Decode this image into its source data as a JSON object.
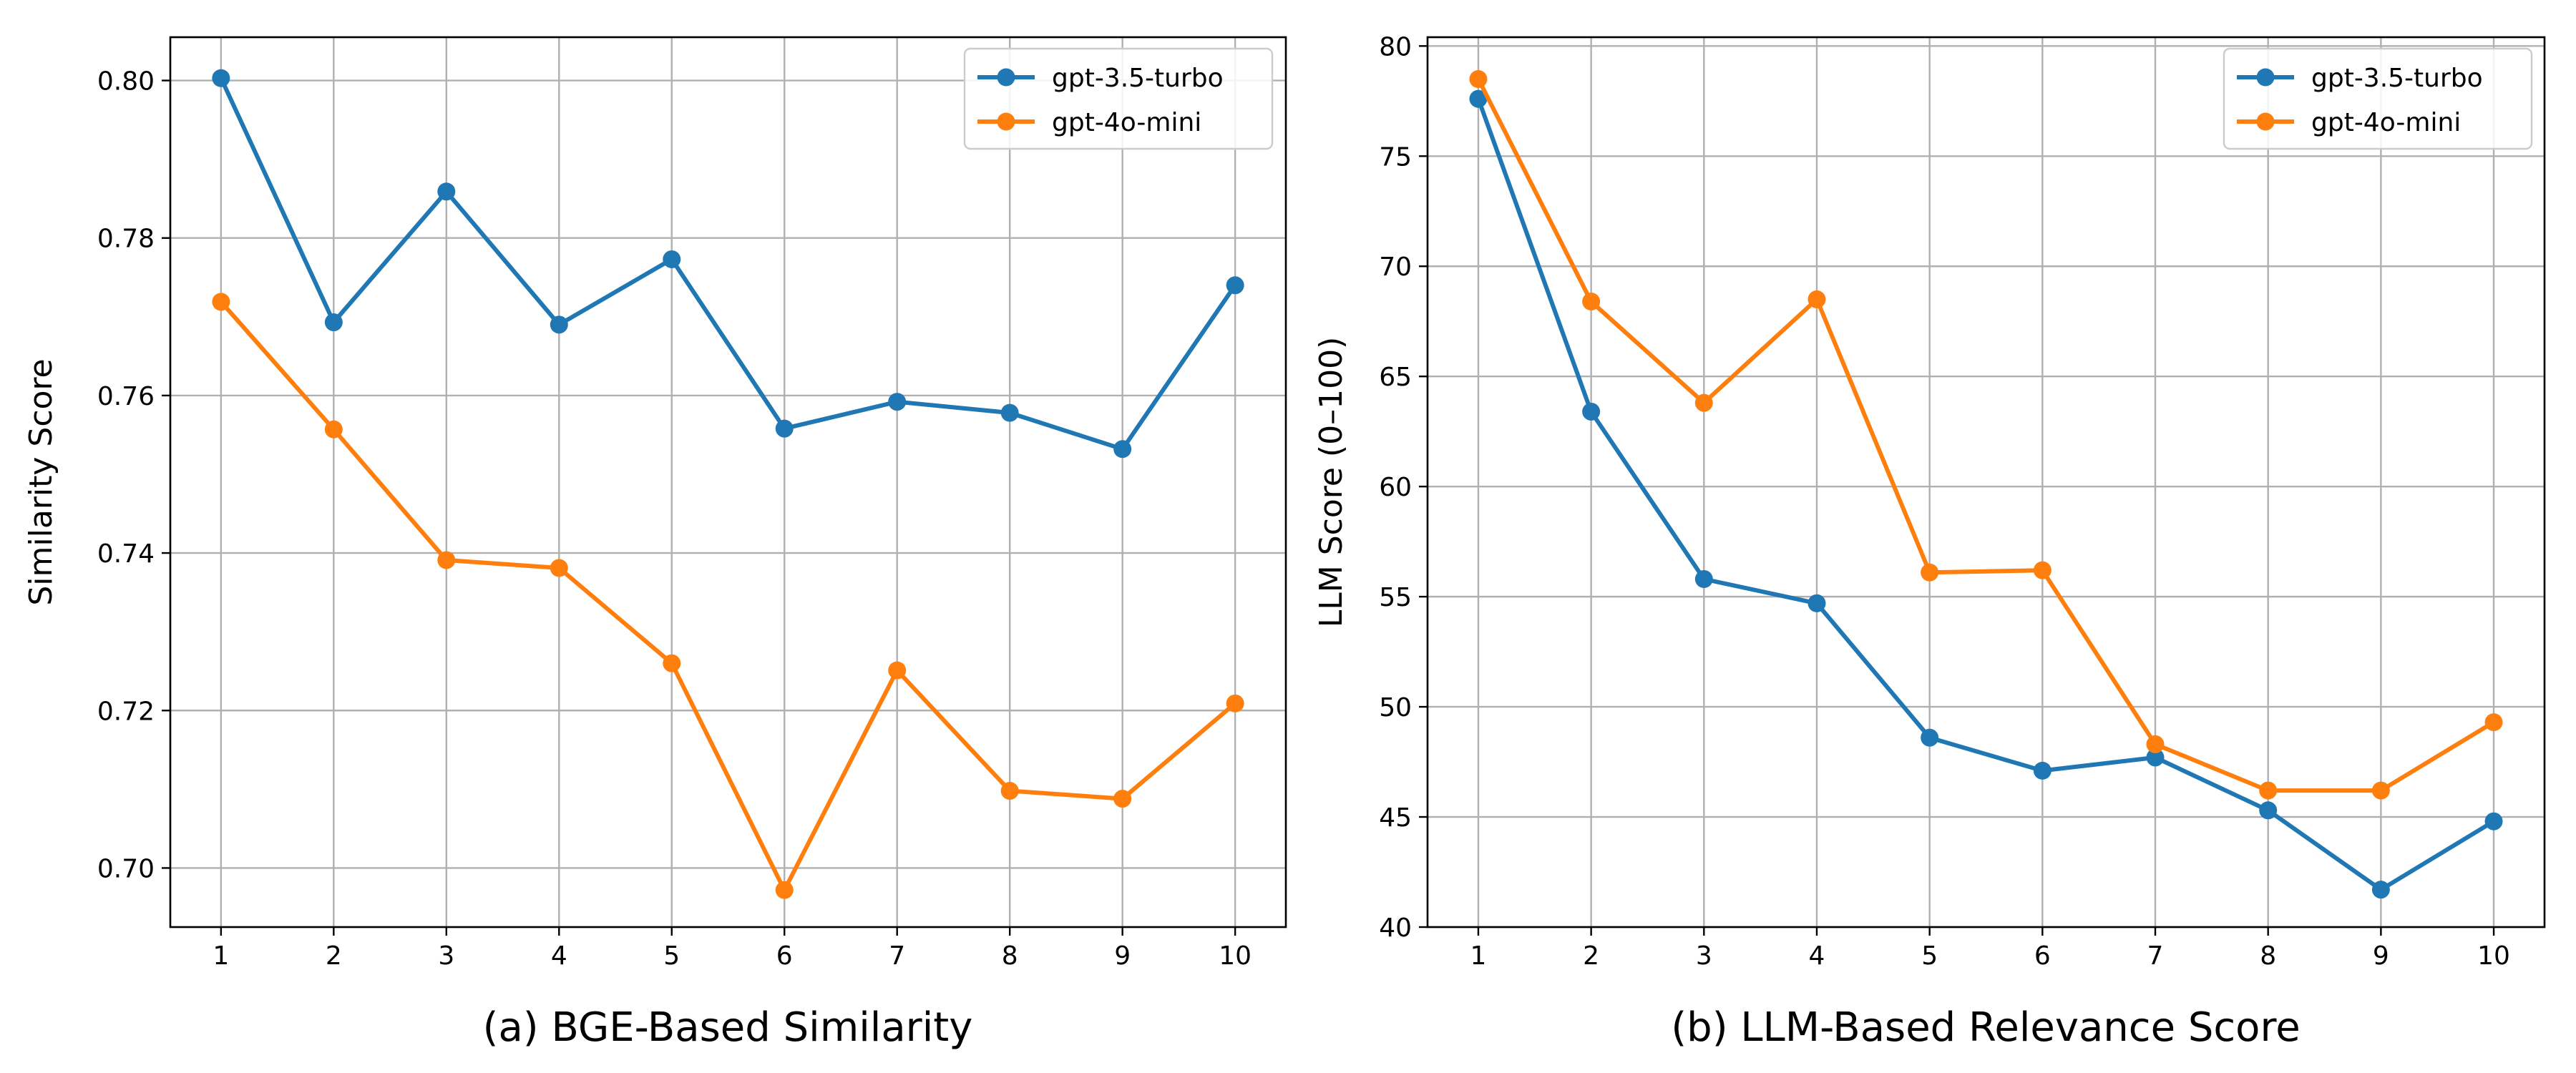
{
  "chart_data": [
    {
      "type": "line",
      "caption": "(a) BGE-Based Similarity",
      "xlabel": "",
      "ylabel": "Similarity Score",
      "x": [
        1,
        2,
        3,
        4,
        5,
        6,
        7,
        8,
        9,
        10
      ],
      "x_ticks": [
        "1",
        "2",
        "3",
        "4",
        "5",
        "6",
        "7",
        "8",
        "9",
        "10"
      ],
      "xlim": [
        0.55,
        10.45
      ],
      "ylim": [
        0.6925,
        0.8055
      ],
      "y_ticks": [
        0.7,
        0.72,
        0.74,
        0.76,
        0.78,
        0.8
      ],
      "y_tick_labels": [
        "0.70",
        "0.72",
        "0.74",
        "0.76",
        "0.78",
        "0.80"
      ],
      "grid": true,
      "legend_position": "top-right",
      "series": [
        {
          "name": "gpt-3.5-turbo",
          "color": "#1f77b4",
          "values": [
            0.8003,
            0.7693,
            0.7859,
            0.769,
            0.7773,
            0.7558,
            0.7592,
            0.7578,
            0.7532,
            0.774
          ]
        },
        {
          "name": "gpt-4o-mini",
          "color": "#ff7f0e",
          "values": [
            0.7719,
            0.7557,
            0.7391,
            0.7381,
            0.726,
            0.6972,
            0.7251,
            0.7098,
            0.7088,
            0.7209
          ]
        }
      ]
    },
    {
      "type": "line",
      "caption": "(b) LLM-Based Relevance Score",
      "xlabel": "",
      "ylabel": "LLM Score (0–100)",
      "x": [
        1,
        2,
        3,
        4,
        5,
        6,
        7,
        8,
        9,
        10
      ],
      "x_ticks": [
        "1",
        "2",
        "3",
        "4",
        "5",
        "6",
        "7",
        "8",
        "9",
        "10"
      ],
      "xlim": [
        0.55,
        10.45
      ],
      "ylim": [
        40.0,
        80.4
      ],
      "y_ticks": [
        40,
        45,
        50,
        55,
        60,
        65,
        70,
        75,
        80
      ],
      "y_tick_labels": [
        "40",
        "45",
        "50",
        "55",
        "60",
        "65",
        "70",
        "75",
        "80"
      ],
      "grid": true,
      "legend_position": "top-right",
      "series": [
        {
          "name": "gpt-3.5-turbo",
          "color": "#1f77b4",
          "values": [
            77.6,
            63.4,
            55.8,
            54.7,
            48.6,
            47.1,
            47.7,
            45.3,
            41.7,
            44.8
          ]
        },
        {
          "name": "gpt-4o-mini",
          "color": "#ff7f0e",
          "values": [
            78.5,
            68.4,
            63.8,
            68.5,
            56.1,
            56.2,
            48.3,
            46.2,
            46.2,
            49.3
          ]
        }
      ]
    }
  ]
}
